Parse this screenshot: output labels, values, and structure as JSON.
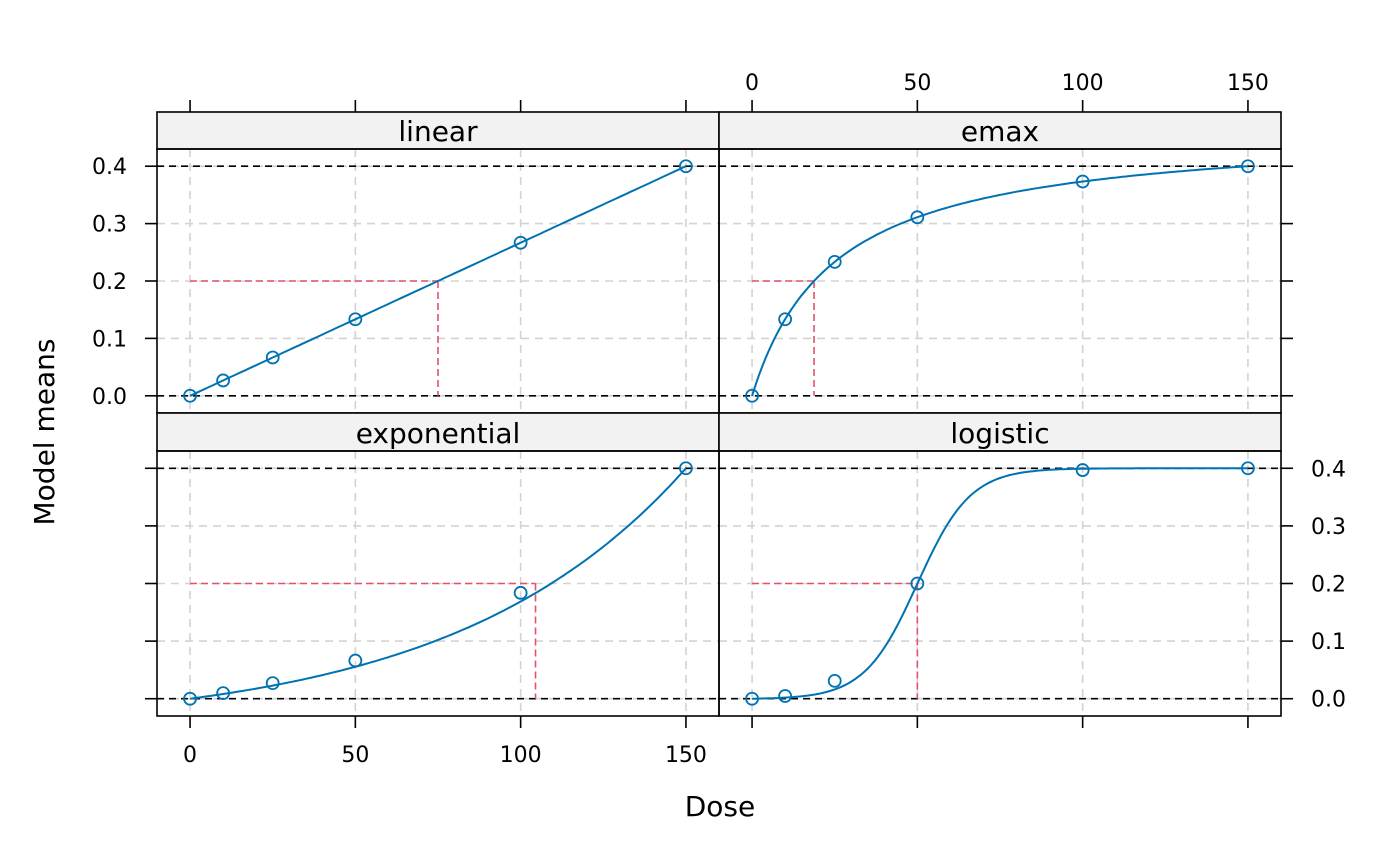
{
  "chart_data": {
    "type": "line",
    "layout": "2x2 trellis",
    "xlabel": "Dose",
    "ylabel": "Model means",
    "xlim": [
      -10,
      160
    ],
    "ylim": [
      -0.03,
      0.43
    ],
    "x_ticks": [
      0,
      50,
      100,
      150
    ],
    "y_ticks": [
      0.0,
      0.1,
      0.2,
      0.3,
      0.4
    ],
    "y_tick_labels": [
      "0.0",
      "0.1",
      "0.2",
      "0.3",
      "0.4"
    ],
    "x_tick_labels": [
      "0",
      "50",
      "100",
      "150"
    ],
    "reference_lines": {
      "placebo": 0.0,
      "max_effect": 0.4
    },
    "target_delta": 0.2,
    "grid": true,
    "colors": {
      "model": "#0072B2",
      "target": "#DF536B",
      "reference": "#000000",
      "grid": "#D3D3D3",
      "strip": "#F2F2F2"
    },
    "panels": [
      {
        "name": "linear",
        "doses": [
          0,
          10,
          25,
          50,
          100,
          150
        ],
        "means": [
          0.0,
          0.0267,
          0.0667,
          0.1333,
          0.2667,
          0.4
        ],
        "target_dose": 75
      },
      {
        "name": "emax",
        "doses": [
          0,
          10,
          25,
          50,
          100,
          150
        ],
        "means": [
          0.0,
          0.1333,
          0.2333,
          0.3111,
          0.3733,
          0.4
        ],
        "target_dose": 18.75
      },
      {
        "name": "exponential",
        "doses": [
          0,
          10,
          25,
          50,
          100,
          150
        ],
        "means": [
          0.0,
          0.0097,
          0.0271,
          0.0662,
          0.1838,
          0.4
        ],
        "target_dose": 104.5
      },
      {
        "name": "logistic",
        "doses": [
          0,
          10,
          25,
          50,
          100,
          150
        ],
        "means": [
          0.0,
          0.0047,
          0.031,
          0.2,
          0.3969,
          0.4
        ],
        "target_dose": 50
      }
    ]
  }
}
